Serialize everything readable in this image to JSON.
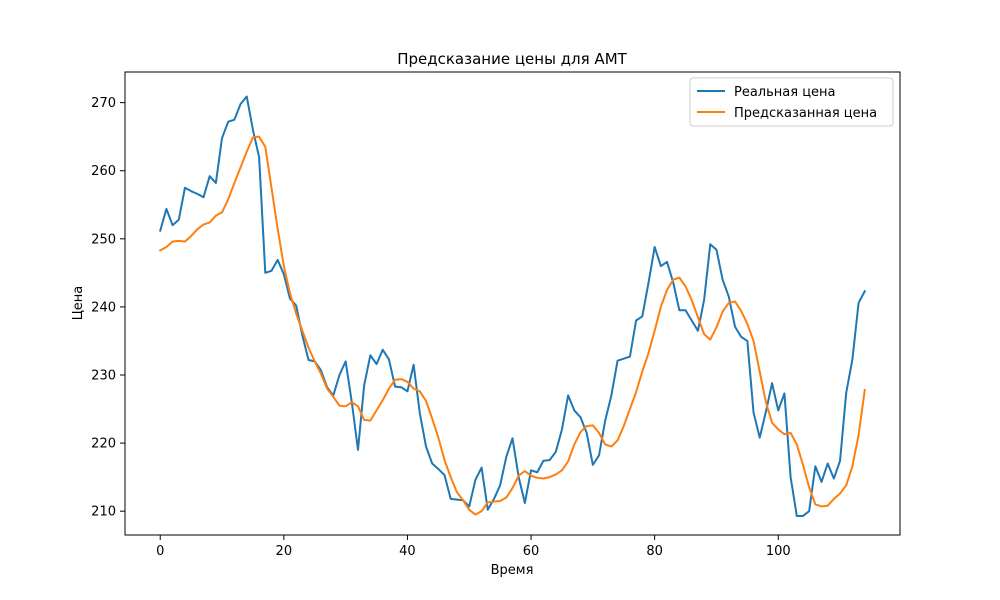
{
  "chart_data": {
    "type": "line",
    "title": "Предсказание цены для AMT",
    "xlabel": "Время",
    "ylabel": "Цена",
    "xlim": [
      -5.7,
      119.7
    ],
    "ylim": [
      206.5,
      274.5
    ],
    "xticks": [
      0,
      20,
      40,
      60,
      80,
      100
    ],
    "yticks": [
      210,
      220,
      230,
      240,
      250,
      260,
      270
    ],
    "grid": false,
    "legend_position": "top-right",
    "series": [
      {
        "name": "Реальная цена",
        "color": "#1f77b4",
        "x0": 0,
        "values": [
          251.2,
          254.4,
          252.0,
          252.8,
          257.5,
          257.0,
          256.6,
          256.1,
          259.2,
          258.2,
          264.8,
          267.2,
          267.5,
          269.8,
          270.9,
          266.0,
          262.0,
          245.0,
          245.3,
          246.9,
          244.8,
          241.2,
          240.2,
          235.8,
          232.2,
          232.0,
          230.7,
          228.2,
          227.0,
          230.0,
          232.0,
          226.0,
          219.0,
          228.5,
          232.9,
          231.6,
          233.7,
          232.3,
          228.3,
          228.2,
          227.6,
          231.5,
          224.4,
          219.5,
          217.0,
          216.2,
          215.3,
          211.8,
          211.7,
          211.6,
          210.7,
          214.6,
          216.4,
          210.2,
          211.8,
          213.8,
          218.0,
          220.7,
          215.0,
          211.2,
          216.0,
          215.7,
          217.4,
          217.5,
          218.7,
          222.0,
          227.0,
          224.8,
          223.8,
          221.5,
          216.8,
          218.2,
          223.3,
          227.0,
          232.1,
          232.4,
          232.7,
          238.0,
          238.6,
          243.5,
          248.8,
          246.0,
          246.6,
          243.6,
          239.5,
          239.5,
          238.0,
          236.5,
          241.0,
          249.2,
          248.4,
          244.0,
          241.5,
          237.1,
          235.6,
          235.0,
          224.5,
          220.8,
          224.6,
          228.8,
          224.8,
          227.3,
          215.0,
          209.3,
          209.3,
          210.0,
          216.6,
          214.3,
          217.0,
          214.8,
          217.4,
          227.4,
          232.3,
          240.6,
          242.3
        ]
      },
      {
        "name": "Предсказанная цена",
        "color": "#ff7f0e",
        "x0": 0,
        "values": [
          248.3,
          248.8,
          249.6,
          249.7,
          249.6,
          250.4,
          251.4,
          252.1,
          252.4,
          253.4,
          253.9,
          255.8,
          258.2,
          260.5,
          262.8,
          264.9,
          265.0,
          263.5,
          257.5,
          251.5,
          246.0,
          242.0,
          239.0,
          236.5,
          234.0,
          232.0,
          230.2,
          228.0,
          226.8,
          225.5,
          225.4,
          226.0,
          225.4,
          223.4,
          223.3,
          224.8,
          226.3,
          228.0,
          229.3,
          229.4,
          229.0,
          228.0,
          227.6,
          226.2,
          223.6,
          220.8,
          217.5,
          215.0,
          212.8,
          211.6,
          210.2,
          209.5,
          210.0,
          211.3,
          211.4,
          211.5,
          212.0,
          213.4,
          215.2,
          215.9,
          215.2,
          214.9,
          214.8,
          215.0,
          215.4,
          216.0,
          217.3,
          219.8,
          221.6,
          222.5,
          222.6,
          221.5,
          219.8,
          219.5,
          220.4,
          222.5,
          225.0,
          227.5,
          230.5,
          233.2,
          236.5,
          240.0,
          242.5,
          244.0,
          244.3,
          243.0,
          241.0,
          238.5,
          236.0,
          235.2,
          237.0,
          239.3,
          240.6,
          240.8,
          239.4,
          237.5,
          235.0,
          230.5,
          226.0,
          223.0,
          222.0,
          221.3,
          221.5,
          219.8,
          216.8,
          213.5,
          211.0,
          210.7,
          210.8,
          211.8,
          212.6,
          213.8,
          216.6,
          221.2,
          227.8
        ]
      }
    ]
  }
}
